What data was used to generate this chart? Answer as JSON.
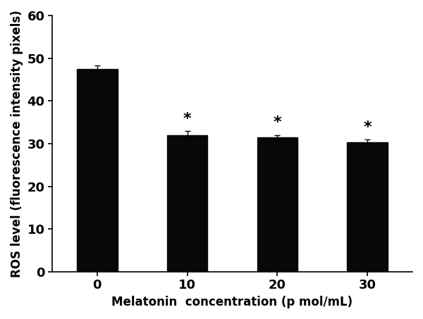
{
  "categories": [
    "0",
    "10",
    "20",
    "30"
  ],
  "x_positions": [
    0,
    1,
    2,
    3
  ],
  "values": [
    47.5,
    32.0,
    31.5,
    30.3
  ],
  "errors": [
    0.8,
    0.9,
    0.55,
    0.65
  ],
  "bar_color": "#080808",
  "bar_width": 0.45,
  "ylim": [
    0,
    60
  ],
  "yticks": [
    0,
    10,
    20,
    30,
    40,
    50,
    60
  ],
  "ylabel": "ROS level (fluorescence intensity pixels)",
  "xlabel": "Melatonin  concentration (p mol/mL)",
  "significance": [
    false,
    true,
    true,
    true
  ],
  "sig_symbol": "*",
  "sig_fontsize": 16,
  "label_fontsize": 12,
  "tick_fontsize": 13,
  "background_color": "#ffffff"
}
